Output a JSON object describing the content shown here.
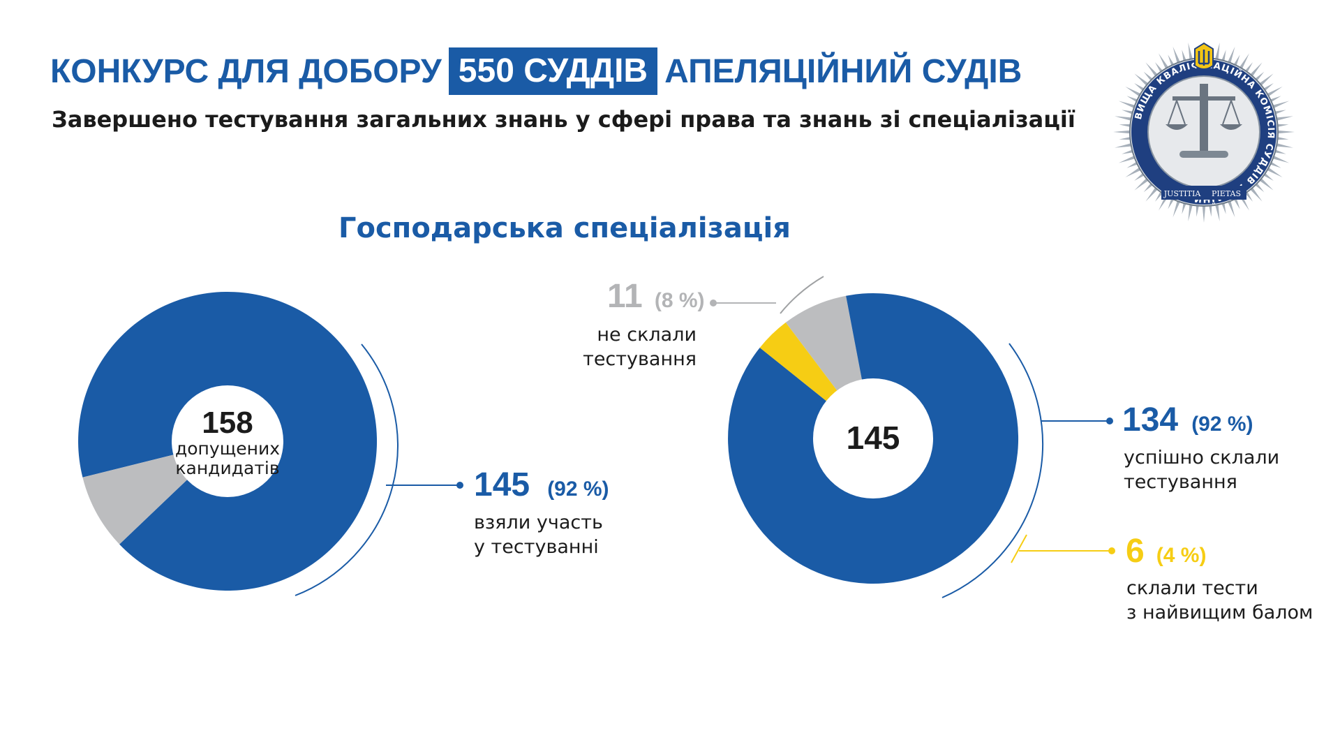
{
  "header": {
    "title_before": "КОНКУРС ДЛЯ ДОБОРУ",
    "title_highlight": "550 СУДДІВ",
    "title_after": "АПЕЛЯЦІЙНИЙ СУДІВ",
    "subtitle": "Завершено тестування загальних знань у сфері права та знань зі спеціалізації",
    "section": "Господарська спеціалізація"
  },
  "logo": {
    "ring_text": "ВИЩА КВАЛІФІКАЦІЙНА КОМІСІЯ СУДДІВ УКРАЇНИ",
    "motto_left": "JUSTITIA",
    "motto_right": "PIETAS"
  },
  "colors": {
    "blue": "#1a5ba6",
    "gray": "#bcbdbf",
    "yellow": "#f6cd14",
    "dark": "#1b1b1b",
    "label_gray": "#b3b4b6"
  },
  "chart_data": [
    {
      "type": "pie",
      "center_value": "158",
      "center_label": "допущених кандидатів",
      "center_label_lines": [
        "допущених",
        "кандидатів"
      ],
      "slices": [
        {
          "value": 145,
          "value_text": "145",
          "percent": 92,
          "percent_text": "(92 %)",
          "label": "взяли участь у тестуванні",
          "label_lines": [
            "взяли участь",
            "у тестуванні"
          ],
          "color": "#1a5ba6"
        },
        {
          "value": 13,
          "color": "#bcbdbf"
        }
      ]
    },
    {
      "type": "pie",
      "center_value": "145",
      "slices": [
        {
          "value": 11,
          "value_text": "11",
          "percent": 8,
          "percent_text": "(8 %)",
          "label": "не склали тестування",
          "label_lines": [
            "не склали",
            "тестування"
          ],
          "color": "#bcbdbf"
        },
        {
          "value": 134,
          "value_text": "134",
          "percent": 92,
          "percent_text": "(92 %)",
          "label": "успішно склали тестування",
          "label_lines": [
            "успішно склали",
            "тестування"
          ],
          "color": "#1a5ba6"
        },
        {
          "value": 6,
          "value_text": "6",
          "percent": 4,
          "percent_text": "(4 %)",
          "label": "склали тести з найвищим балом",
          "label_lines": [
            "склали тести",
            "з найвищим балом"
          ],
          "color": "#f6cd14"
        }
      ]
    }
  ]
}
